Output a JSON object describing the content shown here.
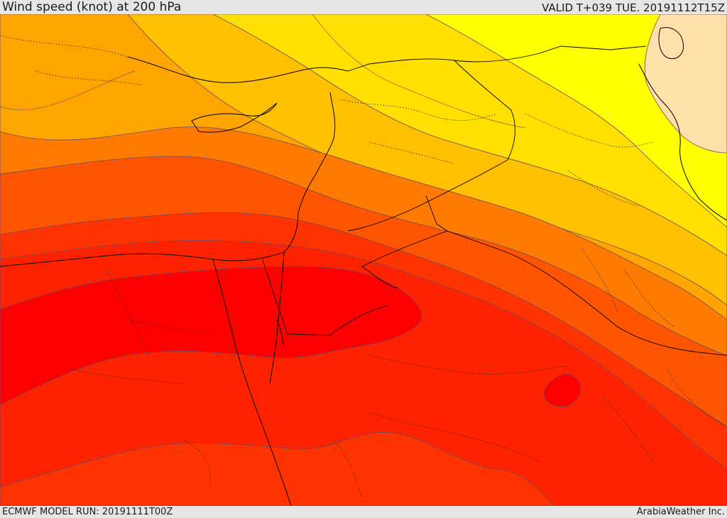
{
  "header": {
    "title": "Wind speed (knot) at 200 hPa",
    "valid": "VALID T+039 TUE. 20191112T15Z"
  },
  "footer": {
    "model_run": "ECMWF MODEL RUN: 20191111T00Z",
    "credit": "ArabiaWeather Inc."
  },
  "map": {
    "field": "wind-speed-200hPa",
    "colors": {
      "light_peach": "#ffe0a8",
      "yellow": "#ffff00",
      "gold": "#ffe000",
      "amber": "#ffc000",
      "orange": "#ffa500",
      "dark_orange": "#ff7a00",
      "red_orange": "#ff5500",
      "orange_red": "#ff3300",
      "red": "#ff2200",
      "deep_red": "#ff0000",
      "contour": "#6a4a6a",
      "border": "#000000"
    }
  }
}
